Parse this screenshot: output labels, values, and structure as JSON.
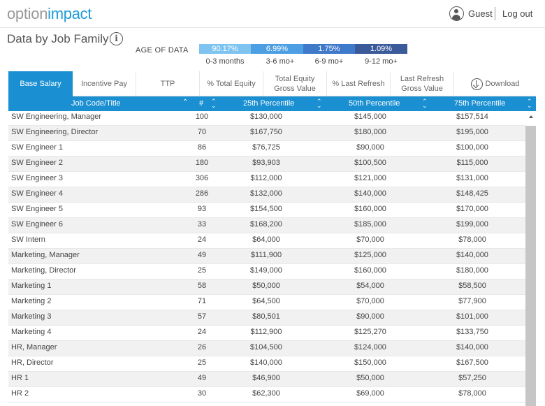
{
  "header": {
    "logo_part1": "option",
    "logo_part2": "impact",
    "user_name": "Guest",
    "logout_label": "Log out"
  },
  "page_title": "Data by Job Family",
  "age_of_data": {
    "label": "AGE OF DATA",
    "bars": [
      {
        "value": "90.17%",
        "caption": "0-3 months",
        "color": "#7fc4f0"
      },
      {
        "value": "6.99%",
        "caption": "3-6 mo+",
        "color": "#4d9fe3"
      },
      {
        "value": "1.75%",
        "caption": "6-9 mo+",
        "color": "#3f79c9"
      },
      {
        "value": "1.09%",
        "caption": "9-12 mo+",
        "color": "#3a5a9a"
      }
    ]
  },
  "tabs": [
    {
      "label": "Base Salary",
      "active": true
    },
    {
      "label": "Incentive Pay"
    },
    {
      "label": "TTP"
    },
    {
      "label": "% Total Equity"
    },
    {
      "label": "Total Equity\nGross Value"
    },
    {
      "label": "% Last Refresh"
    },
    {
      "label": "Last Refresh\nGross Value"
    },
    {
      "label": "Download"
    }
  ],
  "table": {
    "columns": [
      "Job Code/Title",
      "#",
      "25th Percentile",
      "50th Percentile",
      "75th Percentile"
    ],
    "rows": [
      [
        "SW Engineering, Manager",
        "100",
        "$130,000",
        "$145,000",
        "$157,514"
      ],
      [
        "SW Engineering, Director",
        "70",
        "$167,750",
        "$180,000",
        "$195,000"
      ],
      [
        "SW Engineer 1",
        "86",
        "$76,725",
        "$90,000",
        "$100,000"
      ],
      [
        "SW Engineer 2",
        "180",
        "$93,903",
        "$100,500",
        "$115,000"
      ],
      [
        "SW Engineer 3",
        "306",
        "$112,000",
        "$121,000",
        "$131,000"
      ],
      [
        "SW Engineer 4",
        "286",
        "$132,000",
        "$140,000",
        "$148,425"
      ],
      [
        "SW Engineer 5",
        "93",
        "$154,500",
        "$160,000",
        "$170,000"
      ],
      [
        "SW Engineer 6",
        "33",
        "$168,200",
        "$185,000",
        "$199,000"
      ],
      [
        "SW Intern",
        "24",
        "$64,000",
        "$70,000",
        "$78,000"
      ],
      [
        "Marketing, Manager",
        "49",
        "$111,900",
        "$125,000",
        "$140,000"
      ],
      [
        "Marketing, Director",
        "25",
        "$149,000",
        "$160,000",
        "$180,000"
      ],
      [
        "Marketing 1",
        "58",
        "$50,000",
        "$54,000",
        "$58,500"
      ],
      [
        "Marketing 2",
        "71",
        "$64,500",
        "$70,000",
        "$77,900"
      ],
      [
        "Marketing 3",
        "57",
        "$80,501",
        "$90,000",
        "$101,000"
      ],
      [
        "Marketing 4",
        "24",
        "$112,900",
        "$125,270",
        "$133,750"
      ],
      [
        "HR, Manager",
        "26",
        "$104,500",
        "$124,000",
        "$140,000"
      ],
      [
        "HR, Director",
        "25",
        "$140,000",
        "$150,000",
        "$167,500"
      ],
      [
        "HR 1",
        "49",
        "$46,900",
        "$50,000",
        "$57,250"
      ],
      [
        "HR 2",
        "30",
        "$62,300",
        "$69,000",
        "$78,000"
      ]
    ]
  }
}
